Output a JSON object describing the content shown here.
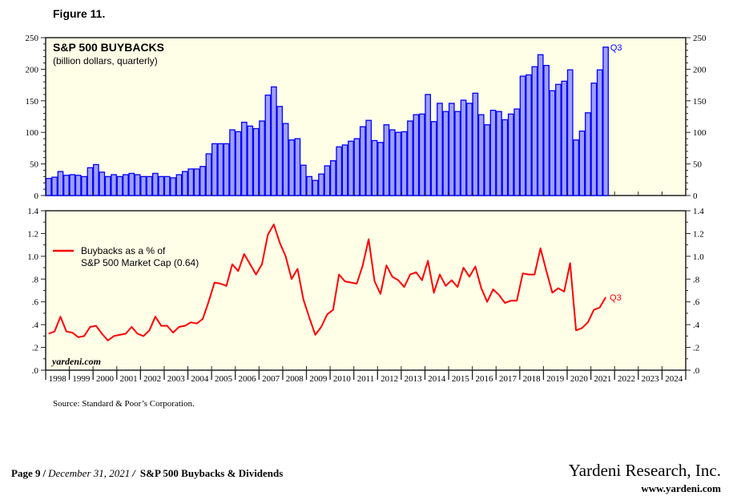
{
  "figure_label": "Figure 11.",
  "source": "Source: Standard & Poor’s Corporation.",
  "watermark": "yardeni.com",
  "footer": {
    "page": "Page 9",
    "date": "December 31, 2021",
    "doc_title": "S&P 500 Buybacks & Dividends",
    "company": "Yardeni Research, Inc.",
    "website": "www.yardeni.com"
  },
  "colors": {
    "bar_fill": "#9f9fff",
    "bar_stroke": "#0000ff",
    "line": "#ff0000",
    "panel_bg": "#ffffe8"
  },
  "chart_data": [
    {
      "type": "bar",
      "title": "S&P 500 BUYBACKS",
      "subtitle": "(billion dollars, quarterly)",
      "end_label": "Q3",
      "start": "1998 Q1",
      "frequency": "quarterly",
      "ylim": [
        0,
        250
      ],
      "yticks": [
        "0",
        "50",
        "100",
        "150",
        "200",
        "250"
      ],
      "values": [
        27,
        29,
        38,
        32,
        33,
        32,
        30,
        44,
        49,
        37,
        30,
        33,
        30,
        33,
        35,
        33,
        30,
        30,
        35,
        30,
        30,
        28,
        33,
        38,
        42,
        42,
        46,
        66,
        82,
        82,
        82,
        104,
        101,
        116,
        110,
        106,
        118,
        159,
        172,
        141,
        114,
        88,
        90,
        48,
        30,
        24,
        34,
        47,
        55,
        77,
        80,
        86,
        90,
        109,
        119,
        87,
        84,
        112,
        104,
        100,
        101,
        118,
        128,
        129,
        160,
        117,
        146,
        133,
        146,
        133,
        151,
        146,
        162,
        128,
        112,
        135,
        133,
        120,
        129,
        137,
        189,
        191,
        204,
        223,
        206,
        166,
        176,
        181,
        199,
        88,
        102,
        131,
        178,
        199,
        235
      ]
    },
    {
      "type": "line",
      "legend": [
        "Buybacks as a % of",
        "S&P 500 Market Cap (0.64)"
      ],
      "end_label": "Q3",
      "start": "1998 Q1",
      "frequency": "quarterly",
      "ylim": [
        0,
        1.4
      ],
      "yticks": [
        ".0",
        ".2",
        ".4",
        ".6",
        ".8",
        "1.0",
        "1.2",
        "1.4"
      ],
      "values": [
        0.32,
        0.34,
        0.47,
        0.34,
        0.33,
        0.29,
        0.3,
        0.38,
        0.39,
        0.32,
        0.26,
        0.3,
        0.31,
        0.32,
        0.38,
        0.32,
        0.3,
        0.35,
        0.47,
        0.39,
        0.39,
        0.33,
        0.38,
        0.39,
        0.42,
        0.41,
        0.45,
        0.6,
        0.77,
        0.76,
        0.74,
        0.93,
        0.87,
        1.02,
        0.93,
        0.84,
        0.93,
        1.19,
        1.28,
        1.12,
        1.0,
        0.8,
        0.89,
        0.62,
        0.46,
        0.31,
        0.38,
        0.49,
        0.53,
        0.84,
        0.78,
        0.77,
        0.76,
        0.92,
        1.15,
        0.78,
        0.67,
        0.92,
        0.82,
        0.79,
        0.73,
        0.84,
        0.86,
        0.79,
        0.96,
        0.68,
        0.84,
        0.74,
        0.79,
        0.73,
        0.9,
        0.82,
        0.91,
        0.72,
        0.6,
        0.71,
        0.66,
        0.59,
        0.61,
        0.61,
        0.85,
        0.84,
        0.84,
        1.07,
        0.87,
        0.68,
        0.72,
        0.69,
        0.94,
        0.35,
        0.37,
        0.42,
        0.53,
        0.55,
        0.64
      ]
    }
  ],
  "x_axis": {
    "tick_labels": [
      "1998",
      "1999",
      "2000",
      "2001",
      "2002",
      "2003",
      "2004",
      "2005",
      "2006",
      "2007",
      "2008",
      "2009",
      "2010",
      "2011",
      "2012",
      "2013",
      "2014",
      "2015",
      "2016",
      "2017",
      "2018",
      "2019",
      "2020",
      "2021",
      "2022",
      "2023",
      "2024"
    ]
  }
}
